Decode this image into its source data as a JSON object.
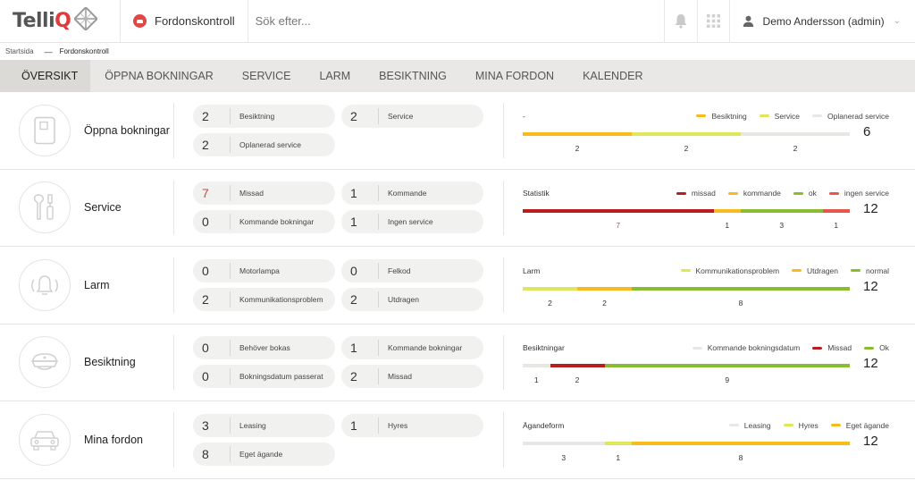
{
  "header": {
    "logo": {
      "brand_start": "Telli",
      "brand_end": "Q"
    },
    "app_title": "Fordonskontroll",
    "search_placeholder": "Sök efter...",
    "user_name": "Demo Andersson (admin)"
  },
  "breadcrumb": {
    "home": "Startsida",
    "current": "Fordonskontroll"
  },
  "tabs": [
    "ÖVERSIKT",
    "ÖPPNA BOKNINGAR",
    "SERVICE",
    "LARM",
    "BESIKTNING",
    "MINA FORDON",
    "KALENDER"
  ],
  "colors": {
    "orange": "#f7bc1c",
    "yellow": "#dfe65b",
    "light": "#e8e7e4",
    "red": "#b81e1e",
    "green": "#88bd31",
    "coral": "#e5574b"
  },
  "rows": [
    {
      "title": "Öppna bokningar",
      "icon": "document-icon",
      "chips": [
        {
          "num": "2",
          "label": "Besiktning"
        },
        {
          "num": "2",
          "label": "Service"
        },
        {
          "num": "2",
          "label": "Oplanerad service"
        }
      ],
      "stat_label": "-",
      "legend": [
        {
          "label": "Besiktning",
          "color": "#f7bc1c"
        },
        {
          "label": "Service",
          "color": "#dfe65b"
        },
        {
          "label": "Oplanerad service",
          "color": "#e8e7e4"
        }
      ],
      "segments": [
        {
          "value": 2,
          "color": "#f7bc1c"
        },
        {
          "value": 2,
          "color": "#dfe65b"
        },
        {
          "value": 2,
          "color": "#e8e7e4"
        }
      ],
      "total": "6"
    },
    {
      "title": "Service",
      "icon": "tools-icon",
      "chips": [
        {
          "num": "7",
          "label": "Missad",
          "red": true
        },
        {
          "num": "1",
          "label": "Kommande"
        },
        {
          "num": "0",
          "label": "Kommande bokningar"
        },
        {
          "num": "1",
          "label": "Ingen service"
        }
      ],
      "stat_label": "Statistik",
      "legend": [
        {
          "label": "missad",
          "color": "#b81e1e"
        },
        {
          "label": "kommande",
          "color": "#f7bc1c"
        },
        {
          "label": "ok",
          "color": "#88bd31"
        },
        {
          "label": "ingen service",
          "color": "#e5574b"
        }
      ],
      "segments": [
        {
          "value": 7,
          "color": "#b81e1e",
          "label_color": "#c74b46"
        },
        {
          "value": 1,
          "color": "#f7bc1c"
        },
        {
          "value": 3,
          "color": "#88bd31"
        },
        {
          "value": 1,
          "color": "#e5574b"
        }
      ],
      "total": "12"
    },
    {
      "title": "Larm",
      "icon": "alarm-icon",
      "chips": [
        {
          "num": "0",
          "label": "Motorlampa"
        },
        {
          "num": "0",
          "label": "Felkod"
        },
        {
          "num": "2",
          "label": "Kommunikationsproblem"
        },
        {
          "num": "2",
          "label": "Utdragen"
        }
      ],
      "stat_label": "Larm",
      "legend": [
        {
          "label": "Kommunikationsproblem",
          "color": "#dfe65b"
        },
        {
          "label": "Utdragen",
          "color": "#f7bc1c"
        },
        {
          "label": "normal",
          "color": "#88bd31"
        }
      ],
      "segments": [
        {
          "value": 2,
          "color": "#dfe65b"
        },
        {
          "value": 2,
          "color": "#f7bc1c"
        },
        {
          "value": 8,
          "color": "#88bd31"
        }
      ],
      "total": "12"
    },
    {
      "title": "Besiktning",
      "icon": "inspector-cap-icon",
      "chips": [
        {
          "num": "0",
          "label": "Behöver bokas"
        },
        {
          "num": "1",
          "label": "Kommande bokningar"
        },
        {
          "num": "0",
          "label": "Bokningsdatum passerat"
        },
        {
          "num": "2",
          "label": "Missad"
        }
      ],
      "stat_label": "Besiktningar",
      "legend": [
        {
          "label": "Kommande bokningsdatum",
          "color": "#e8e7e4"
        },
        {
          "label": "Missad",
          "color": "#b81e1e"
        },
        {
          "label": "Ok",
          "color": "#88bd31"
        }
      ],
      "segments": [
        {
          "value": 1,
          "color": "#e8e7e4"
        },
        {
          "value": 2,
          "color": "#b81e1e"
        },
        {
          "value": 9,
          "color": "#88bd31"
        }
      ],
      "total": "12"
    },
    {
      "title": "Mina fordon",
      "icon": "car-icon",
      "chips": [
        {
          "num": "3",
          "label": "Leasing"
        },
        {
          "num": "1",
          "label": "Hyres"
        },
        {
          "num": "8",
          "label": "Eget ägande"
        }
      ],
      "stat_label": "Ägandeform",
      "legend": [
        {
          "label": "Leasing",
          "color": "#e8e7e4"
        },
        {
          "label": "Hyres",
          "color": "#dfe65b"
        },
        {
          "label": "Eget ägande",
          "color": "#f7bc1c"
        }
      ],
      "segments": [
        {
          "value": 3,
          "color": "#e8e7e4"
        },
        {
          "value": 1,
          "color": "#dfe65b"
        },
        {
          "value": 8,
          "color": "#f7bc1c"
        }
      ],
      "total": "12"
    }
  ]
}
